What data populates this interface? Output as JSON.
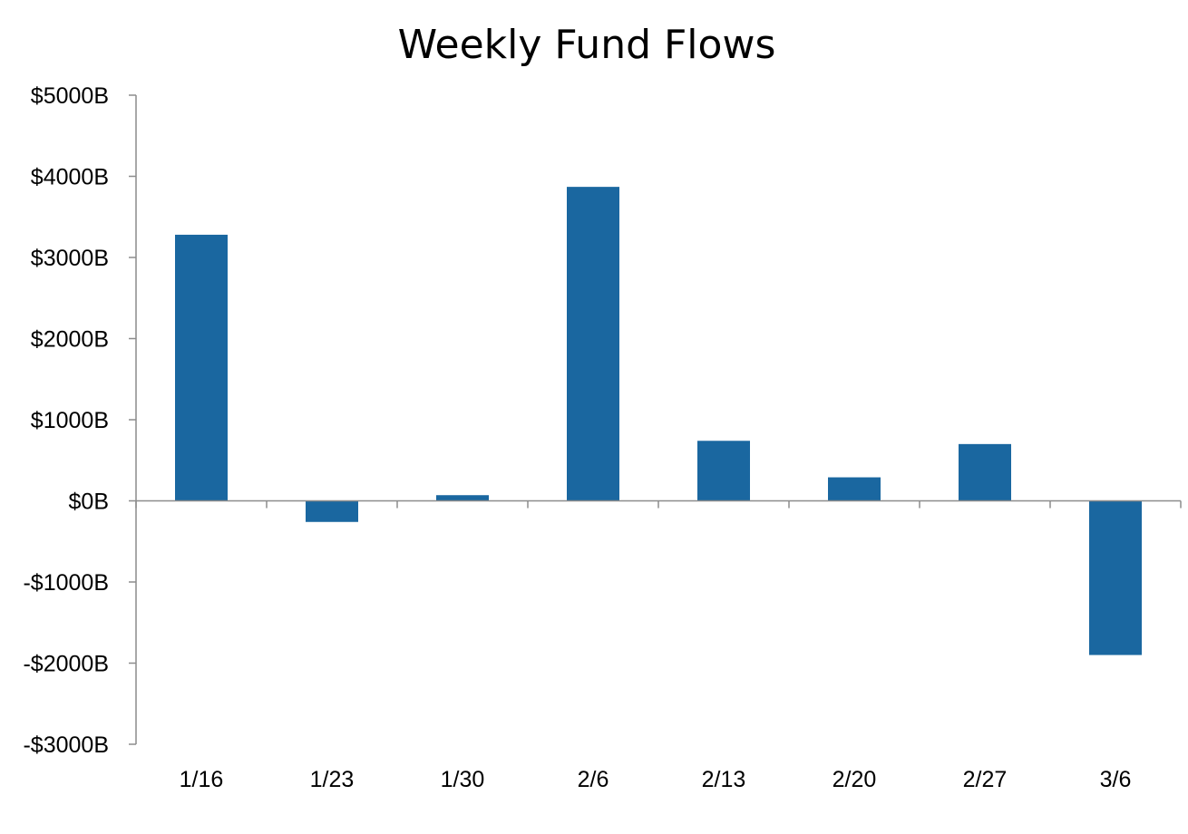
{
  "chart_data": {
    "type": "bar",
    "title": "Weekly Fund Flows",
    "xlabel": "",
    "ylabel": "",
    "categories": [
      "1/16",
      "1/23",
      "1/30",
      "2/6",
      "2/13",
      "2/20",
      "2/27",
      "3/6"
    ],
    "values": [
      3280,
      -260,
      70,
      3870,
      740,
      290,
      700,
      -1900
    ],
    "ylim": [
      -3000,
      5000
    ],
    "yticks": [
      5000,
      4000,
      3000,
      2000,
      1000,
      0,
      -1000,
      -2000,
      -3000
    ],
    "ytick_labels": [
      "$5000B",
      "$4000B",
      "$3000B",
      "$2000B",
      "$1000B",
      "$0B",
      "-$1000B",
      "-$2000B",
      "-$3000B"
    ],
    "grid": false,
    "legend": "none",
    "bar_color": "#1a67a0"
  }
}
